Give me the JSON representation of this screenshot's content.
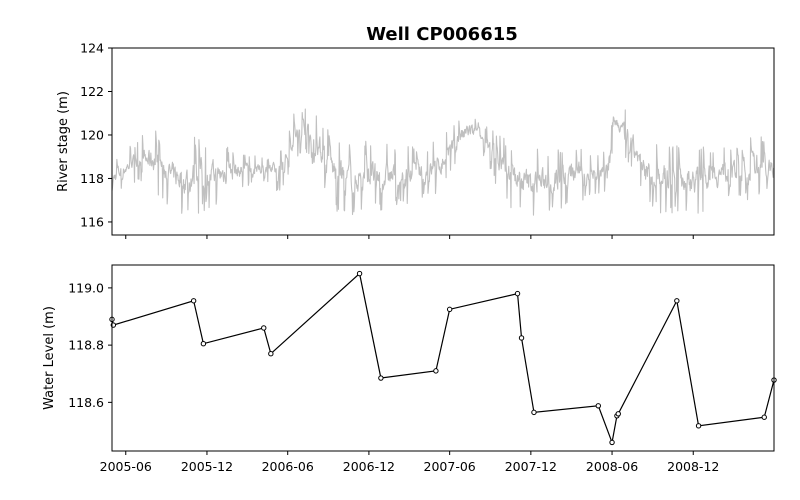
{
  "chart_data": {
    "type": "line",
    "title": "Well CP006615",
    "xlim": [
      "2005-05-01",
      "2009-06-01"
    ],
    "x_ticks": [
      "2005-06",
      "2005-12",
      "2006-06",
      "2006-12",
      "2007-06",
      "2007-12",
      "2008-06",
      "2008-12"
    ],
    "panels": [
      {
        "name": "river-stage",
        "ylabel": "River stage (m)",
        "ylim": [
          115.4,
          124.0
        ],
        "y_ticks": [
          116,
          118,
          120,
          122,
          124
        ],
        "series_color": "#c0c0c0",
        "band": {
          "x": [
            "2005-05-01",
            "2005-06-15",
            "2005-08-01",
            "2005-09-15",
            "2005-10-15",
            "2005-11-15",
            "2006-01-01",
            "2006-03-01",
            "2006-04-15",
            "2006-05-15",
            "2006-06-15",
            "2006-07-15",
            "2006-08-15",
            "2006-09-15",
            "2006-10-15",
            "2006-12-01",
            "2007-02-01",
            "2007-04-01",
            "2007-05-15",
            "2007-06-15",
            "2007-07-15",
            "2007-08-15",
            "2007-09-15",
            "2007-10-15",
            "2007-12-01",
            "2008-01-15",
            "2008-03-01",
            "2008-04-15",
            "2008-05-15",
            "2008-06-10",
            "2008-07-15",
            "2008-08-15",
            "2008-09-15",
            "2008-11-01",
            "2008-12-15",
            "2009-02-01",
            "2009-03-15",
            "2009-05-01",
            "2009-06-01"
          ],
          "low": [
            117.2,
            117.8,
            117.4,
            116.6,
            116.2,
            116.4,
            116.8,
            117.6,
            117.8,
            117.2,
            118.8,
            119.2,
            117.6,
            116.4,
            116.2,
            116.4,
            116.6,
            117.0,
            117.4,
            118.6,
            119.2,
            119.0,
            117.6,
            116.6,
            116.2,
            116.4,
            116.8,
            117.0,
            117.4,
            119.8,
            118.2,
            116.8,
            116.4,
            116.2,
            116.4,
            116.8,
            117.0,
            117.0,
            117.4
          ],
          "high": [
            118.8,
            119.6,
            120.4,
            119.6,
            119.8,
            120.0,
            119.6,
            119.2,
            119.0,
            119.4,
            121.0,
            121.6,
            120.8,
            120.2,
            119.8,
            119.8,
            119.6,
            119.4,
            120.0,
            120.8,
            121.2,
            120.6,
            120.2,
            119.6,
            119.4,
            119.4,
            119.6,
            119.4,
            119.2,
            121.4,
            121.0,
            119.8,
            119.8,
            119.6,
            119.6,
            119.6,
            119.6,
            120.2,
            119.6
          ]
        }
      },
      {
        "name": "water-level",
        "ylabel": "Water Level (m)",
        "ylim": [
          118.43,
          119.08
        ],
        "y_ticks": [
          118.6,
          118.8,
          119.0
        ],
        "y_tick_labels": [
          "118.6",
          "118.8",
          "119.0"
        ],
        "series_color": "#000000",
        "x": [
          "2005-05-01",
          "2005-05-04",
          "2005-11-01",
          "2005-11-23",
          "2006-04-08",
          "2006-04-24",
          "2006-11-10",
          "2006-12-28",
          "2007-05-01",
          "2007-06-01",
          "2007-11-01",
          "2007-11-10",
          "2007-12-08",
          "2008-05-01",
          "2008-06-01",
          "2008-06-12",
          "2008-06-15",
          "2008-10-25",
          "2008-12-13",
          "2009-05-10",
          "2009-06-01"
        ],
        "y": [
          118.89,
          118.87,
          118.955,
          118.805,
          118.86,
          118.77,
          119.05,
          118.685,
          118.71,
          118.925,
          118.98,
          118.825,
          118.565,
          118.588,
          118.46,
          118.553,
          118.56,
          118.955,
          118.518,
          118.548,
          118.678
        ]
      }
    ]
  }
}
